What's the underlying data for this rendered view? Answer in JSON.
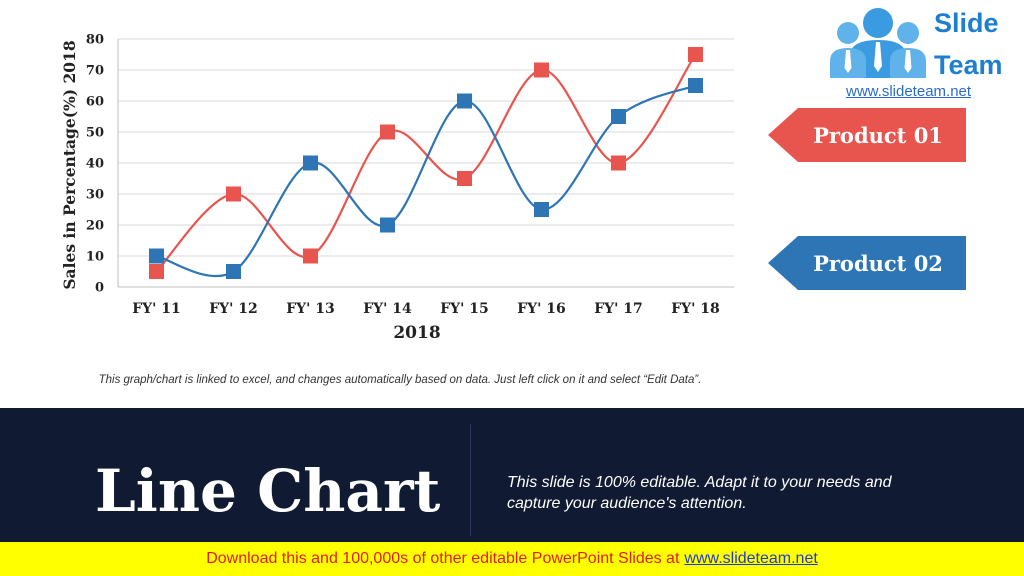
{
  "chart_data": {
    "type": "line",
    "categories": [
      "FY' 11",
      "FY' 12",
      "FY' 13",
      "FY' 14",
      "FY' 15",
      "FY' 16",
      "FY' 17",
      "FY' 18"
    ],
    "series": [
      {
        "name": "Product 01",
        "color": "#e8554e",
        "values": [
          5,
          30,
          10,
          50,
          35,
          70,
          40,
          75
        ]
      },
      {
        "name": "Product 02",
        "color": "#2e75b6",
        "values": [
          10,
          5,
          40,
          20,
          60,
          25,
          55,
          65
        ]
      }
    ],
    "xlabel": "2018",
    "ylabel": "Sales in Percentage(%) 2018",
    "ylim": [
      0,
      80
    ],
    "yticks": [
      0,
      10,
      20,
      30,
      40,
      50,
      60,
      70,
      80
    ],
    "grid": true,
    "smooth": true,
    "marker": "square"
  },
  "legend": {
    "product1": {
      "label": "Product 01",
      "color": "#e8554e"
    },
    "product2": {
      "label": "Product 02",
      "color": "#2e75b6"
    }
  },
  "logo": {
    "line1": "Slide",
    "line2": "Team",
    "url": "www.slideteam.net",
    "icon": "people-group-icon"
  },
  "note": "This graph/chart is linked to excel, and changes automatically based on data. Just left click on it and select “Edit Data”.",
  "slide": {
    "title": "Line Chart",
    "description": "This slide is 100% editable. Adapt it to your needs and capture your audience's attention."
  },
  "footer": {
    "text": "Download this and 100,000s of other editable PowerPoint Slides at",
    "link": "www.slideteam.net"
  }
}
